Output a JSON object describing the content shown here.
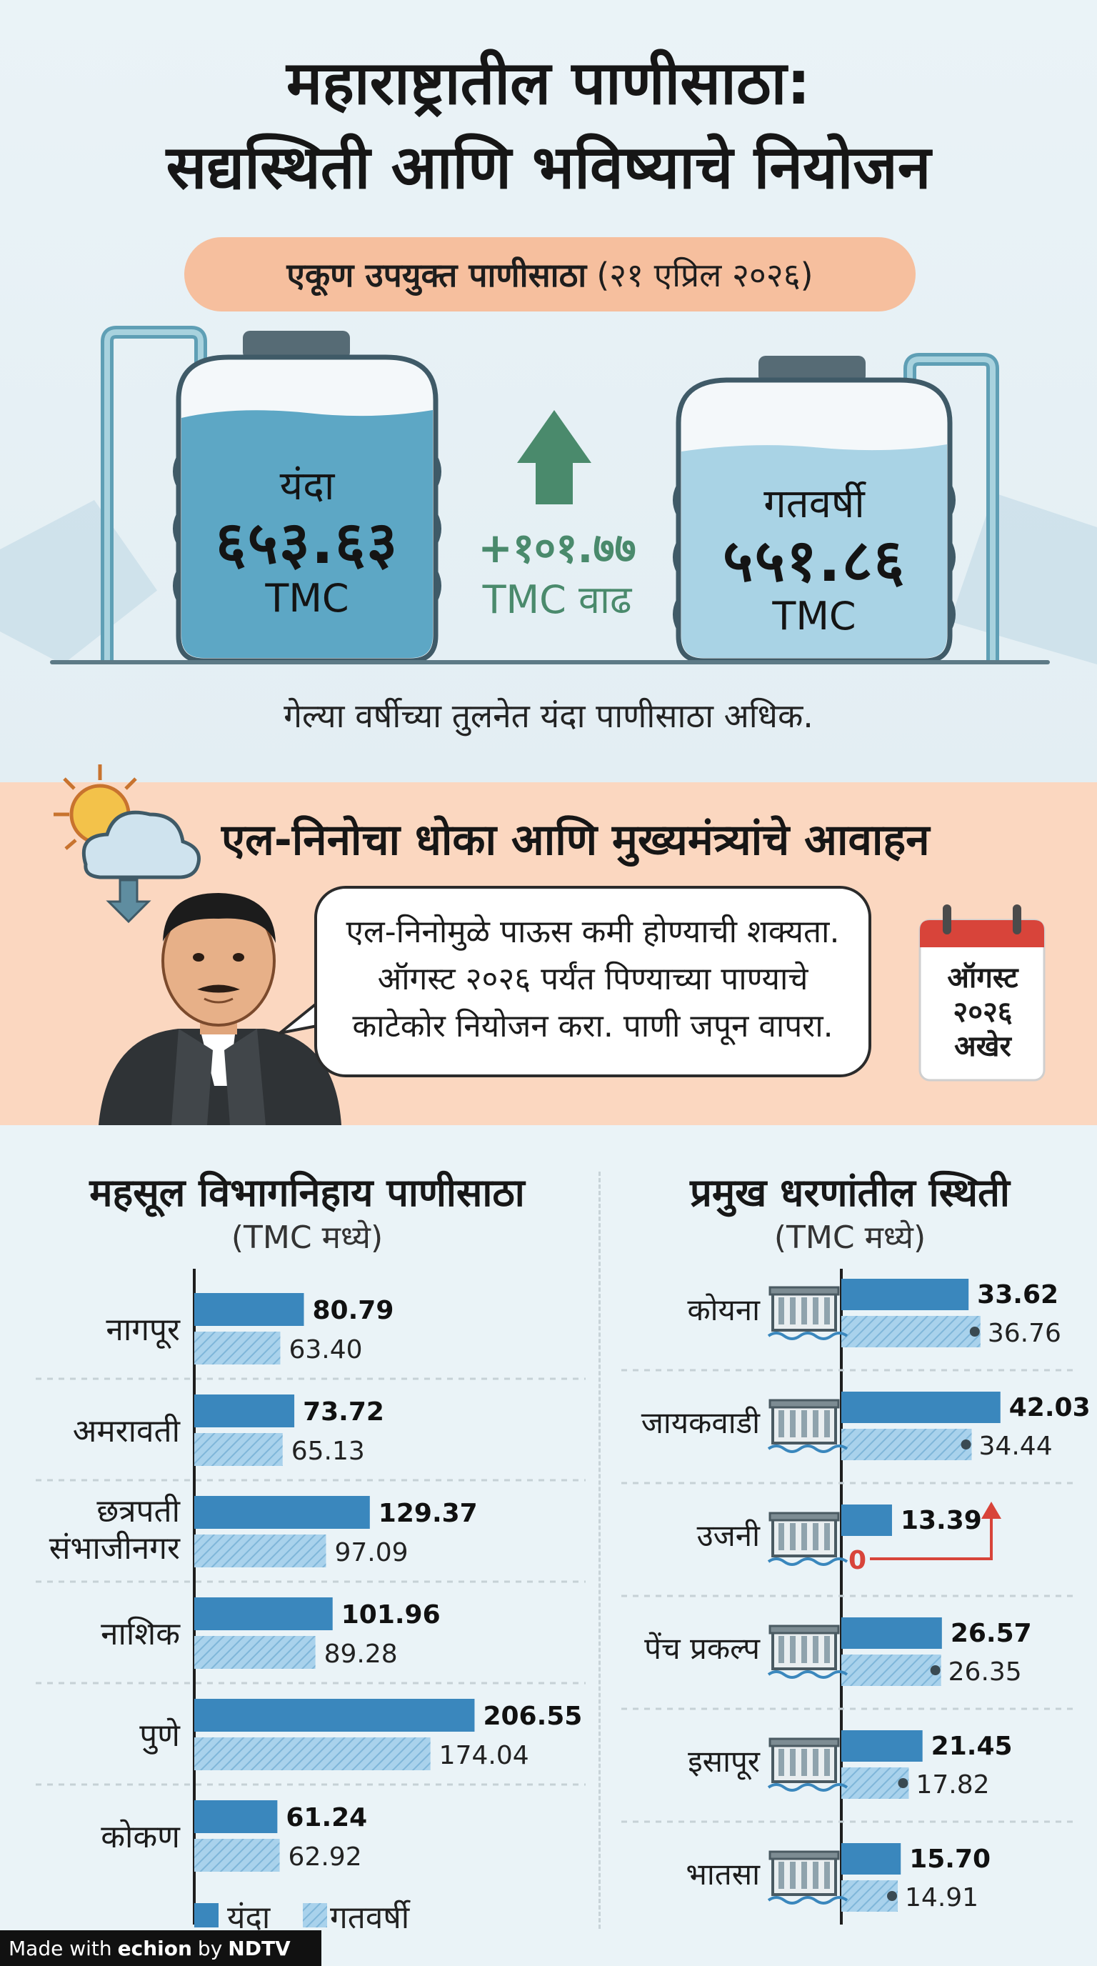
{
  "title": {
    "line1": "महाराष्ट्रातील पाणीसाठा:",
    "line2": "सद्यस्थिती आणि भविष्याचे नियोजन"
  },
  "total_storage": {
    "label": "एकूण उपयुक्त पाणीसाठा",
    "date": "(२१ एप्रिल २०२६)",
    "current": {
      "label": "यंदा",
      "value": "६५३.६३",
      "unit": "TMC"
    },
    "previous": {
      "label": "गतवर्षी",
      "value": "५५१.८६",
      "unit": "TMC"
    },
    "increase": {
      "value": "+१०१.७७",
      "unit": "TMC वाढ"
    },
    "note": "गेल्या वर्षीच्या तुलनेत यंदा पाणीसाठा अधिक."
  },
  "el_nino": {
    "title": "एल-निनोचा धोका आणि मुख्यमंत्र्यांचे आवाहन",
    "quote_lines": [
      "एल-निनोमुळे पाऊस कमी होण्याची शक्यता.",
      "ऑगस्ट २०२६ पर्यंत पिण्याच्या पाण्याचे",
      "काटेकोर नियोजन करा. पाणी जपून वापरा."
    ],
    "calendar_lines": [
      "ऑगस्ट",
      "२०२६",
      "अखेर"
    ]
  },
  "colors": {
    "current_bar": "#3a87bd",
    "previous_bar": "#a9d2ec",
    "peach": "#fbd7c0",
    "growth": "#4a8a6c",
    "alert": "#d8443a"
  },
  "chart_data": [
    {
      "type": "bar",
      "orientation": "horizontal",
      "title": "महसूल विभागनिहाय पाणीसाठा",
      "subtitle": "(TMC मध्ये)",
      "categories": [
        "नागपूर",
        "अमरावती",
        "छत्रपती संभाजीनगर",
        "नाशिक",
        "पुणे",
        "कोकण"
      ],
      "series": [
        {
          "name": "यंदा",
          "values": [
            80.79,
            73.72,
            129.37,
            101.96,
            206.55,
            61.24
          ],
          "labels": [
            "80.79",
            "73.72",
            "129.37",
            "101.96",
            "206.55",
            "61.24"
          ]
        },
        {
          "name": "गतवर्षी",
          "values": [
            63.4,
            65.13,
            97.09,
            89.28,
            174.04,
            62.92
          ],
          "labels": [
            "63.40",
            "65.13",
            "97.09",
            "89.28",
            "174.04",
            "62.92"
          ]
        }
      ],
      "legend": "bottom-left",
      "grid": false
    },
    {
      "type": "bar",
      "orientation": "horizontal",
      "title": "प्रमुख धरणांतील स्थिती",
      "subtitle": "(TMC मध्ये)",
      "categories": [
        "कोयना",
        "जायकवाडी",
        "उजनी",
        "पेंच प्रकल्प",
        "इसापूर",
        "भातसा"
      ],
      "series": [
        {
          "name": "यंदा",
          "values": [
            33.62,
            42.03,
            13.39,
            26.57,
            21.45,
            15.7
          ],
          "labels": [
            "33.62",
            "42.03",
            "13.39",
            "26.57",
            "21.45",
            "15.70"
          ]
        },
        {
          "name": "गतवर्षी",
          "values": [
            36.76,
            34.44,
            0,
            26.35,
            17.82,
            14.91
          ],
          "labels": [
            "36.76",
            "34.44",
            "0",
            "26.35",
            "17.82",
            "14.91"
          ]
        }
      ],
      "grid": false
    }
  ]
}
